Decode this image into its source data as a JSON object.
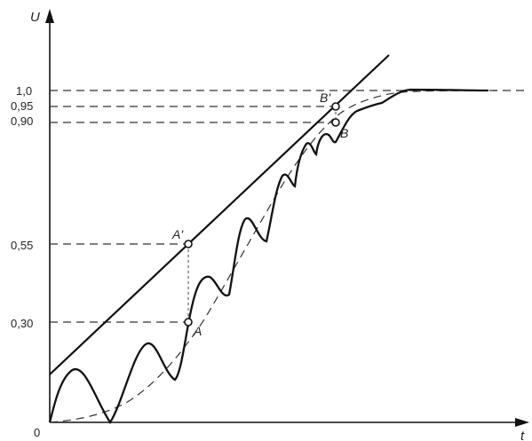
{
  "axes": {
    "y_label": "U",
    "x_label": "t",
    "origin_label": "0"
  },
  "levels": [
    {
      "label": "1,0",
      "value": 1.0
    },
    {
      "label": "0,95",
      "value": 0.95
    },
    {
      "label": "0,90",
      "value": 0.9
    },
    {
      "label": "0,55",
      "value": 0.55
    },
    {
      "label": "0,30",
      "value": 0.3
    }
  ],
  "points": {
    "A": "A",
    "A_prime": "A'",
    "B": "B",
    "B_prime": "B'"
  }
}
